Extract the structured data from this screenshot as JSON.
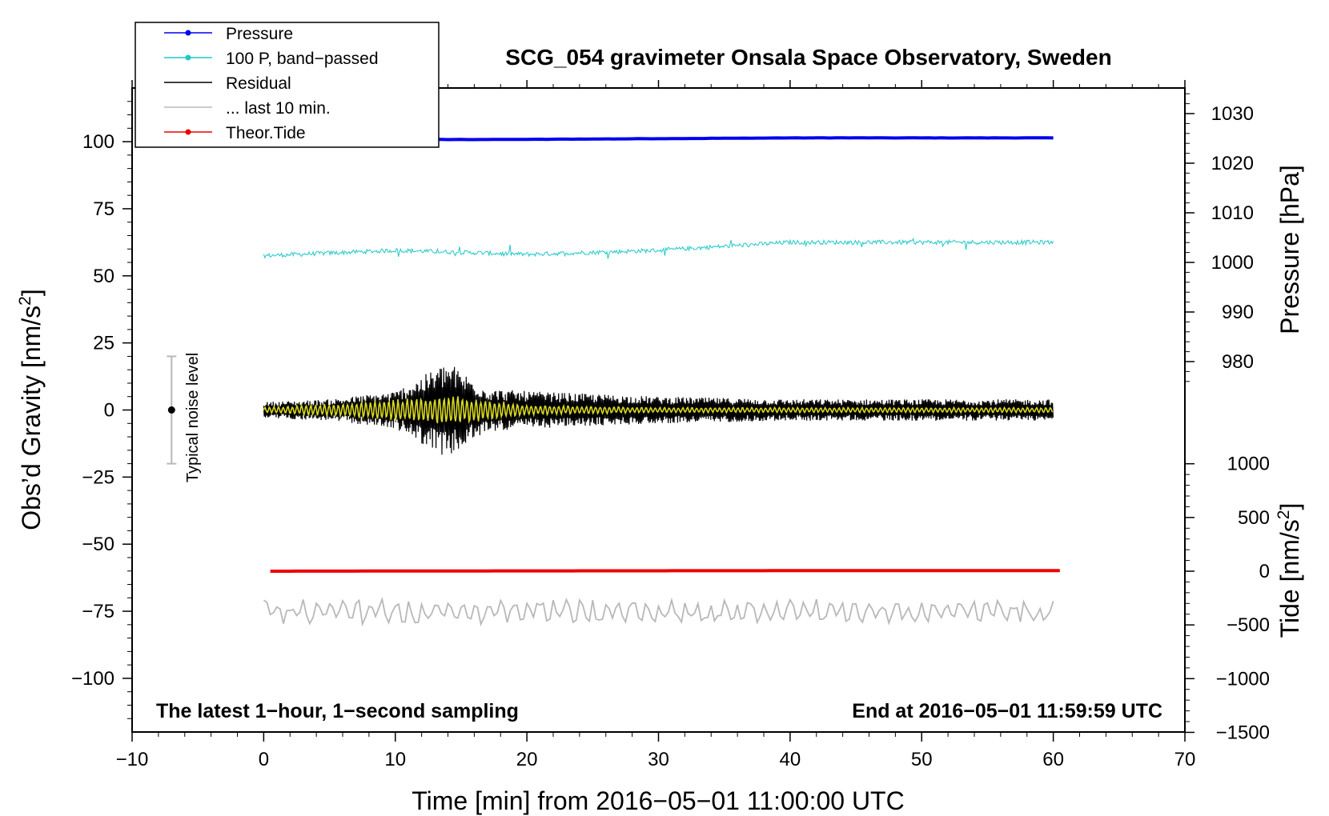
{
  "chart_data": {
    "type": "line",
    "title": "SCG_054 gravimeter Onsala Space Observatory, Sweden",
    "xlabel": "Time [min] from 2016−05−01 11:00:00 UTC",
    "xlim": [
      -10,
      70
    ],
    "x_ticks": [
      -10,
      0,
      10,
      20,
      30,
      40,
      50,
      60,
      70
    ],
    "x_tick_labels": [
      "−10",
      "0",
      "10",
      "20",
      "30",
      "40",
      "50",
      "60",
      "70"
    ],
    "left_axis": {
      "label_main": "Obs’d Gravity [nm/s",
      "label_sup": "2",
      "label_end": "]",
      "ylim": [
        -120,
        120
      ],
      "ticks": [
        -100,
        -75,
        -50,
        -25,
        0,
        25,
        50,
        75,
        100
      ],
      "tick_labels": [
        "−100",
        "−75",
        "−50",
        "−25",
        "0",
        "25",
        "50",
        "75",
        "100"
      ]
    },
    "pressure_axis": {
      "label": "Pressure [hPa]",
      "ticks": [
        980,
        990,
        1000,
        1010,
        1020,
        1030
      ],
      "tick_labels": [
        "980",
        "990",
        "1000",
        "1010",
        "1020",
        "1030"
      ]
    },
    "tide_axis": {
      "label_main": "Tide [nm/s",
      "label_sup": "2",
      "label_end": "]",
      "ticks": [
        -1500,
        -1000,
        -500,
        0,
        500,
        1000
      ],
      "tick_labels": [
        "−1500",
        "−1000",
        "−500",
        "0",
        "500",
        "1000"
      ]
    },
    "legend": {
      "position": "top-left",
      "entries": [
        {
          "label": "Pressure",
          "color": "#0000ee",
          "marker": true
        },
        {
          "label": "100 P, band−passed",
          "color": "#20c8c8",
          "marker": true
        },
        {
          "label": "Residual",
          "color": "#000000",
          "marker": false
        },
        {
          "label": "... last 10 min.",
          "color": "#b8b8b8",
          "marker": false
        },
        {
          "label": "Theor.Tide",
          "color": "#ee0000",
          "marker": true
        }
      ]
    },
    "series": [
      {
        "name": "Pressure",
        "color": "#0000ee",
        "axis": "pressure",
        "x": [
          0,
          20,
          40,
          60
        ],
        "values": [
          1024.7,
          1024.8,
          1025.1,
          1025.1
        ]
      },
      {
        "name": "100 P, band−passed",
        "color": "#20c8c8",
        "axis": "gravity",
        "x": [
          0,
          10,
          20,
          30,
          40,
          50,
          60
        ],
        "values": [
          57.5,
          59.5,
          58,
          59.5,
          62.5,
          62.5,
          62.5
        ]
      },
      {
        "name": "Residual",
        "color": "#000000",
        "axis": "gravity",
        "x": [
          0,
          5,
          10,
          14,
          17,
          20,
          30,
          40,
          50,
          60
        ],
        "envelope": [
          3,
          4,
          7,
          18,
          8,
          7,
          5,
          4,
          4,
          4
        ],
        "values": [
          0,
          0,
          0,
          0,
          0,
          0,
          0,
          0,
          0,
          0
        ]
      },
      {
        "name": "yellow",
        "color": "#d8d820",
        "axis": "gravity",
        "x": [
          0,
          7,
          14,
          20,
          30,
          60
        ],
        "envelope": [
          1,
          3,
          6,
          2,
          1,
          1
        ],
        "values": [
          0,
          0,
          0,
          0,
          0,
          0
        ]
      },
      {
        "name": "... last 10 min.",
        "color": "#b8b8b8",
        "axis": "gravity",
        "x": [
          0,
          30,
          60
        ],
        "values": [
          -75,
          -75,
          -75
        ],
        "amplitude": 5
      },
      {
        "name": "Theor.Tide",
        "color": "#ee0000",
        "axis": "tide",
        "x": [
          0,
          20,
          40,
          60.5
        ],
        "values": [
          0,
          3,
          5,
          5
        ]
      }
    ],
    "noise_indicator": {
      "label": "Typical noise level",
      "x": -7,
      "center": 0,
      "low": -20,
      "high": 20
    },
    "bottom_left_note": "The latest 1−hour, 1−second sampling",
    "bottom_right_note": "End at 2016−05−01 11:59:59 UTC"
  }
}
